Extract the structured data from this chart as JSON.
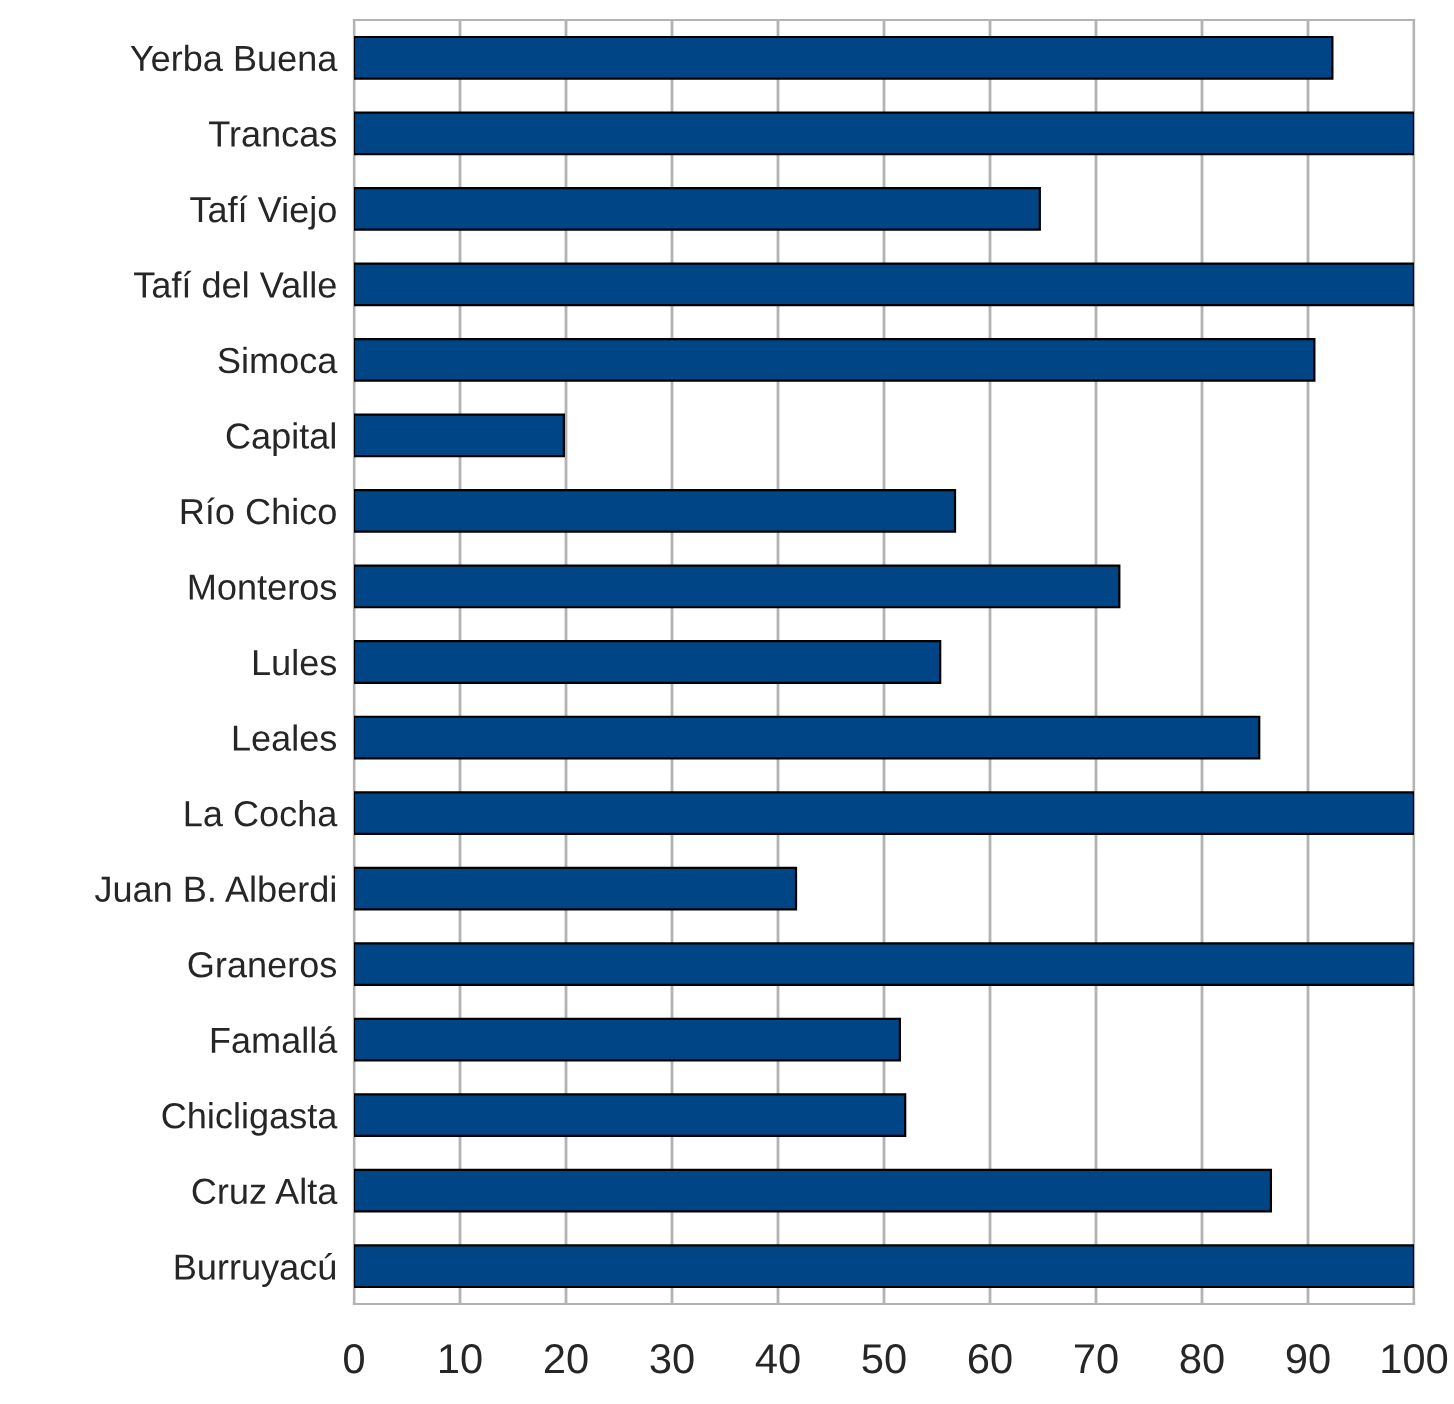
{
  "chart_data": {
    "type": "bar",
    "orientation": "horizontal",
    "categories": [
      "Yerba Buena",
      "Trancas",
      "Tafí Viejo",
      "Tafí del Valle",
      "Simoca",
      "Capital",
      "Río Chico",
      "Monteros",
      "Lules",
      "Leales",
      "La Cocha",
      "Juan B. Alberdi",
      "Graneros",
      "Famallá",
      "Chicligasta",
      "Cruz Alta",
      "Burruyacú"
    ],
    "values": [
      92.3,
      100,
      64.7,
      100,
      90.6,
      19.8,
      56.7,
      72.2,
      55.3,
      85.4,
      100,
      41.7,
      100,
      51.5,
      52.0,
      86.5,
      100
    ],
    "color": "#004586",
    "xlim": [
      0,
      100
    ],
    "xticks": [
      0,
      10,
      20,
      30,
      40,
      50,
      60,
      70,
      80,
      90,
      100
    ],
    "grid": "x"
  }
}
